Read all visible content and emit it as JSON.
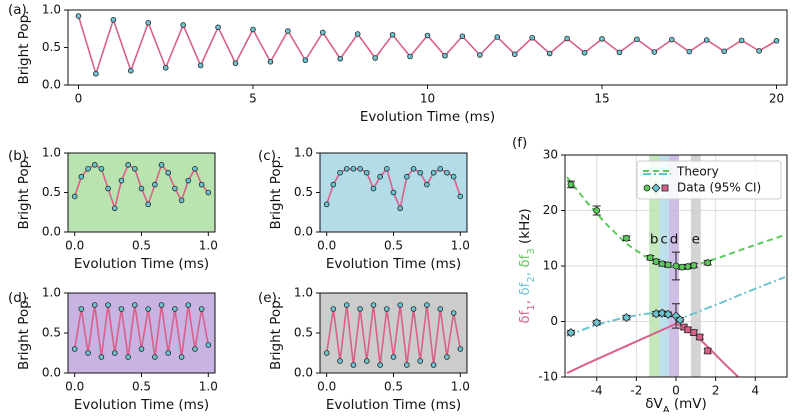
{
  "chart_data": [
    {
      "label": "(a)",
      "type": "line",
      "xlabel": "Evolution Time (ms)",
      "ylabel": "Bright Pop.",
      "xlim": [
        -0.3,
        20.3
      ],
      "ylim": [
        0,
        1
      ],
      "xticks": [
        0,
        5,
        10,
        15,
        20
      ],
      "yticks": [
        {
          "value": 0,
          "label": "0.0"
        },
        {
          "value": 0.5,
          "label": "0.5"
        },
        {
          "value": 1,
          "label": "1.0"
        }
      ],
      "line_color": "#d9608a",
      "point_color": "#6cc4d0",
      "background": "#ffffff",
      "x": [
        0,
        0.5,
        1,
        1.5,
        2,
        2.5,
        3,
        3.5,
        4,
        4.5,
        5,
        5.5,
        6,
        6.5,
        7,
        7.5,
        8,
        8.5,
        9,
        9.5,
        10,
        10.5,
        11,
        11.5,
        12,
        12.5,
        13,
        13.5,
        14,
        14.5,
        15,
        15.5,
        16,
        16.5,
        17,
        17.5,
        18,
        18.5,
        19,
        19.5,
        20
      ],
      "values": [
        0.92,
        0.15,
        0.87,
        0.19,
        0.83,
        0.23,
        0.8,
        0.26,
        0.77,
        0.29,
        0.74,
        0.31,
        0.72,
        0.33,
        0.7,
        0.35,
        0.68,
        0.36,
        0.67,
        0.38,
        0.66,
        0.39,
        0.65,
        0.4,
        0.64,
        0.41,
        0.63,
        0.42,
        0.62,
        0.43,
        0.615,
        0.435,
        0.61,
        0.44,
        0.605,
        0.445,
        0.6,
        0.45,
        0.595,
        0.455,
        0.59
      ]
    },
    {
      "label": "(b)",
      "type": "line",
      "xlabel": "Evolution Time (ms)",
      "ylabel": "Bright Pop.",
      "xlim": [
        -0.05,
        1.05
      ],
      "ylim": [
        0,
        1
      ],
      "xticks": [
        {
          "value": 0,
          "label": "0.0"
        },
        {
          "value": 0.5,
          "label": "0.5"
        },
        {
          "value": 1,
          "label": "1.0"
        }
      ],
      "yticks": [
        {
          "value": 0,
          "label": "0.0"
        },
        {
          "value": 0.5,
          "label": "0.5"
        },
        {
          "value": 1,
          "label": "1.0"
        }
      ],
      "line_color": "#d9608a",
      "point_color": "#6cc4d0",
      "background": "#b9e4b0",
      "x": [
        0,
        0.05,
        0.1,
        0.15,
        0.2,
        0.25,
        0.3,
        0.35,
        0.4,
        0.45,
        0.5,
        0.55,
        0.6,
        0.65,
        0.7,
        0.75,
        0.8,
        0.85,
        0.9,
        0.95,
        1
      ],
      "values": [
        0.45,
        0.7,
        0.8,
        0.85,
        0.8,
        0.55,
        0.3,
        0.65,
        0.85,
        0.8,
        0.55,
        0.35,
        0.6,
        0.85,
        0.75,
        0.55,
        0.4,
        0.65,
        0.8,
        0.6,
        0.5
      ]
    },
    {
      "label": "(c)",
      "type": "line",
      "xlabel": "Evolution Time (ms)",
      "ylabel": "Bright Pop.",
      "xlim": [
        -0.05,
        1.05
      ],
      "ylim": [
        0,
        1
      ],
      "xticks": [
        {
          "value": 0,
          "label": "0.0"
        },
        {
          "value": 0.5,
          "label": "0.5"
        },
        {
          "value": 1,
          "label": "1.0"
        }
      ],
      "yticks": [
        {
          "value": 0,
          "label": "0.0"
        },
        {
          "value": 0.5,
          "label": "0.5"
        },
        {
          "value": 1,
          "label": "1.0"
        }
      ],
      "line_color": "#d9608a",
      "point_color": "#6cc4d0",
      "background": "#b3dbe8",
      "x": [
        0,
        0.05,
        0.1,
        0.15,
        0.2,
        0.25,
        0.3,
        0.35,
        0.4,
        0.45,
        0.5,
        0.55,
        0.6,
        0.65,
        0.7,
        0.75,
        0.8,
        0.85,
        0.9,
        0.95,
        1
      ],
      "values": [
        0.35,
        0.6,
        0.75,
        0.8,
        0.8,
        0.8,
        0.75,
        0.55,
        0.7,
        0.8,
        0.5,
        0.3,
        0.7,
        0.8,
        0.75,
        0.6,
        0.75,
        0.8,
        0.75,
        0.7,
        0.45
      ]
    },
    {
      "label": "(d)",
      "type": "line",
      "xlabel": "Evolution Time (ms)",
      "ylabel": "Bright Pop.",
      "xlim": [
        -0.05,
        1.05
      ],
      "ylim": [
        0,
        1
      ],
      "xticks": [
        {
          "value": 0,
          "label": "0.0"
        },
        {
          "value": 0.5,
          "label": "0.5"
        },
        {
          "value": 1,
          "label": "1.0"
        }
      ],
      "yticks": [
        {
          "value": 0,
          "label": "0.0"
        },
        {
          "value": 0.5,
          "label": "0.5"
        },
        {
          "value": 1,
          "label": "1.0"
        }
      ],
      "line_color": "#d9608a",
      "point_color": "#6cc4d0",
      "background": "#c9b3e3",
      "x": [
        0,
        0.05,
        0.1,
        0.15,
        0.2,
        0.25,
        0.3,
        0.35,
        0.4,
        0.45,
        0.5,
        0.55,
        0.6,
        0.65,
        0.7,
        0.75,
        0.8,
        0.85,
        0.9,
        0.95,
        1
      ],
      "values": [
        0.3,
        0.8,
        0.25,
        0.85,
        0.2,
        0.85,
        0.25,
        0.8,
        0.2,
        0.85,
        0.3,
        0.8,
        0.2,
        0.85,
        0.25,
        0.8,
        0.2,
        0.85,
        0.3,
        0.8,
        0.35
      ]
    },
    {
      "label": "(e)",
      "type": "line",
      "xlabel": "Evolution Time (ms)",
      "ylabel": "Bright Pop.",
      "xlim": [
        -0.05,
        1.05
      ],
      "ylim": [
        0,
        1
      ],
      "xticks": [
        {
          "value": 0,
          "label": "0.0"
        },
        {
          "value": 0.5,
          "label": "0.5"
        },
        {
          "value": 1,
          "label": "1.0"
        }
      ],
      "yticks": [
        {
          "value": 0,
          "label": "0.0"
        },
        {
          "value": 0.5,
          "label": "0.5"
        },
        {
          "value": 1,
          "label": "1.0"
        }
      ],
      "line_color": "#d9608a",
      "point_color": "#6cc4d0",
      "background": "#cccccc",
      "x": [
        0,
        0.05,
        0.1,
        0.15,
        0.2,
        0.25,
        0.3,
        0.35,
        0.4,
        0.45,
        0.5,
        0.55,
        0.6,
        0.65,
        0.7,
        0.75,
        0.8,
        0.85,
        0.9,
        0.95,
        1
      ],
      "values": [
        0.25,
        0.8,
        0.15,
        0.85,
        0.1,
        0.8,
        0.15,
        0.85,
        0.1,
        0.8,
        0.2,
        0.85,
        0.1,
        0.8,
        0.15,
        0.85,
        0.1,
        0.8,
        0.2,
        0.75,
        0.3
      ]
    },
    {
      "label": "(f)",
      "type": "spectrum",
      "grid": true,
      "legend": "upper right",
      "xlabel": {
        "text": "δV",
        "sub": "A",
        "tail": " (mV)"
      },
      "ylabel": [
        {
          "text": "δf",
          "sub": "1",
          "tail": ", ",
          "color": "#d9608a"
        },
        {
          "text": "δf",
          "sub": "2",
          "tail": ", ",
          "color": "#6cc4d0"
        },
        {
          "text": "δf",
          "sub": "3",
          "color": "#5cc85c"
        }
      ],
      "ylabel_unit": " (kHz)",
      "xlim": [
        -5.6,
        5.6
      ],
      "ylim": [
        -10,
        30
      ],
      "xticks": [
        -4,
        -2,
        0,
        2,
        4
      ],
      "yticks": [
        -10,
        0,
        10,
        20,
        30
      ],
      "bands": [
        {
          "label": "b",
          "x": -1.1,
          "color": "#b9e4b0"
        },
        {
          "label": "c",
          "x": -0.6,
          "color": "#b3dbe8"
        },
        {
          "label": "d",
          "x": -0.1,
          "color": "#c9b3e3"
        },
        {
          "label": "e",
          "x": 1.0,
          "color": "#cccccc"
        }
      ],
      "legend_entries": [
        "Theory",
        "Data (95% CI)"
      ],
      "theory_x": [
        -5.5,
        -4.5,
        -3.5,
        -2.5,
        -1.5,
        -1,
        -0.5,
        0,
        0.5,
        1,
        1.5,
        2.5,
        3.5,
        4.5,
        5.5
      ],
      "theory": [
        {
          "color": "#5cc85c",
          "dash": "6,4",
          "values": [
            26,
            21.5,
            17.5,
            14,
            11.6,
            10.8,
            10.1,
            9.8,
            9.9,
            10.2,
            10.7,
            11.9,
            13.2,
            14.4,
            15.6
          ]
        },
        {
          "color": "#6cc4d0",
          "dash": "8,3,2,3",
          "values": [
            -2.6,
            -1.2,
            -0.1,
            0.8,
            1.4,
            1.5,
            1.2,
            0.3,
            0.9,
            1.6,
            2.3,
            3.7,
            5.2,
            6.6,
            8
          ]
        },
        {
          "color": "#d9608a",
          "dash": "none",
          "values": [
            -9.3,
            -7.6,
            -6,
            -4.4,
            -2.8,
            -2,
            -1.2,
            -0.4,
            -1.3,
            -2.5,
            -4.2,
            -7.8,
            -11.2,
            null,
            null
          ]
        }
      ],
      "data": [
        {
          "marker": "circle",
          "color": "#5cc85c",
          "x": [
            -5.3,
            -4,
            -2.5,
            -1.3,
            -1,
            -0.7,
            -0.4,
            0,
            0.3,
            0.6,
            0.9,
            1.6
          ],
          "values": [
            24.7,
            20,
            15,
            11.5,
            10.8,
            10.4,
            10.2,
            10,
            9.8,
            9.9,
            10.1,
            10.6
          ],
          "errors": [
            0.6,
            0.8,
            0.4,
            0.4,
            0.4,
            0.4,
            0.4,
            2.5,
            0.4,
            0.4,
            0.4,
            0.4
          ]
        },
        {
          "marker": "diamond",
          "color": "#6cc4d0",
          "x": [
            -5.3,
            -4,
            -2.5,
            -1,
            -0.7,
            -0.4,
            0,
            0.2
          ],
          "values": [
            -2,
            -0.2,
            0.7,
            1.4,
            1.5,
            1.3,
            1,
            0.3
          ],
          "errors": [
            0.4,
            0.4,
            0.4,
            0.4,
            0.4,
            0.4,
            2.2,
            0.4
          ]
        },
        {
          "marker": "square",
          "color": "#d9608a",
          "x": [
            0.4,
            0.6,
            0.9,
            1.2,
            1.6
          ],
          "values": [
            -1,
            -1.5,
            -2,
            -2.8,
            -5.3
          ],
          "errors": [
            0.4,
            0.4,
            0.4,
            0.4,
            0.4
          ]
        }
      ]
    }
  ]
}
